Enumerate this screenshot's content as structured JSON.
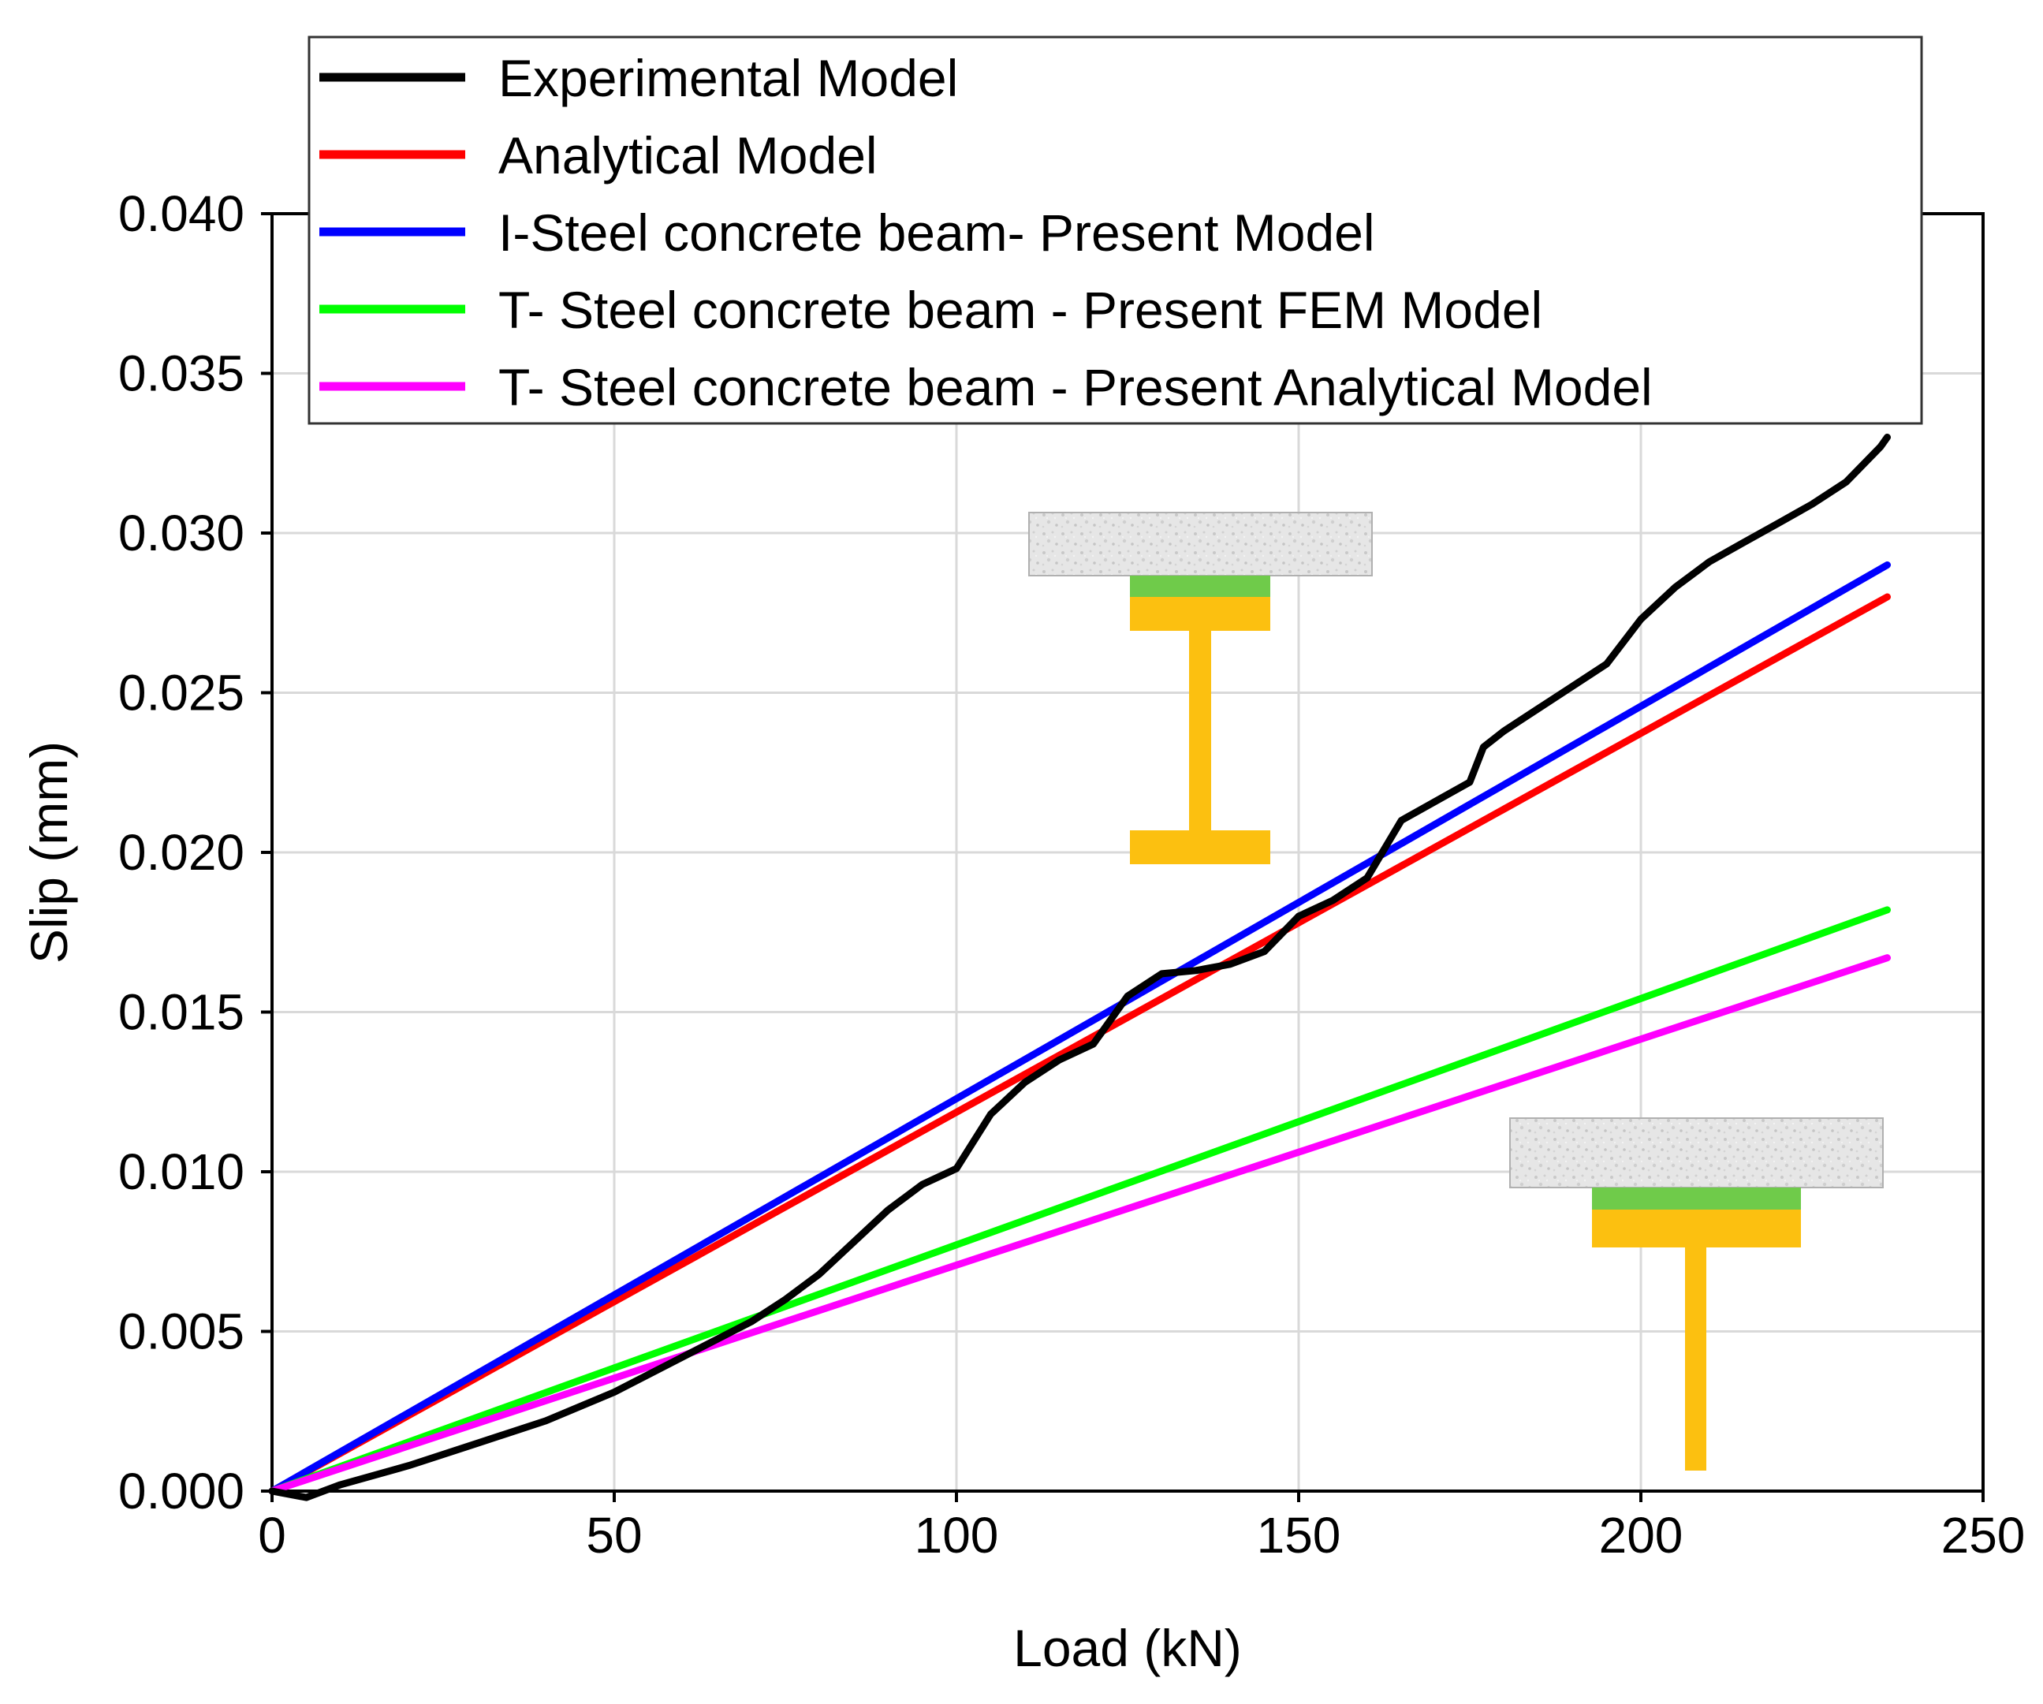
{
  "chart_data": {
    "type": "line",
    "title": "",
    "xlabel": "Load (kN)",
    "ylabel": "Slip (mm)",
    "xlim": [
      0,
      250
    ],
    "ylim": [
      0,
      0.04
    ],
    "xticks": [
      0,
      50,
      100,
      150,
      200,
      250
    ],
    "xtick_labels": [
      "0",
      "50",
      "100",
      "150",
      "200",
      "250"
    ],
    "yticks": [
      0,
      0.005,
      0.01,
      0.015,
      0.02,
      0.025,
      0.03,
      0.035,
      0.04
    ],
    "ytick_labels": [
      "0.000",
      "0.005",
      "0.010",
      "0.015",
      "0.020",
      "0.025",
      "0.030",
      "0.035",
      "0.040"
    ],
    "grid": true,
    "legend_position": "top",
    "series": [
      {
        "name": "Experimental Model",
        "color": "#000000",
        "points": [
          [
            0,
            0
          ],
          [
            5,
            -0.0002
          ],
          [
            10,
            0.0002
          ],
          [
            20,
            0.0008
          ],
          [
            30,
            0.0015
          ],
          [
            40,
            0.0022
          ],
          [
            50,
            0.0031
          ],
          [
            60,
            0.0042
          ],
          [
            70,
            0.0053
          ],
          [
            75,
            0.006
          ],
          [
            80,
            0.0068
          ],
          [
            85,
            0.0078
          ],
          [
            90,
            0.0088
          ],
          [
            95,
            0.0096
          ],
          [
            100,
            0.0101
          ],
          [
            105,
            0.0118
          ],
          [
            110,
            0.0128
          ],
          [
            115,
            0.0135
          ],
          [
            120,
            0.014
          ],
          [
            125,
            0.0155
          ],
          [
            130,
            0.0162
          ],
          [
            135,
            0.0163
          ],
          [
            140,
            0.0165
          ],
          [
            145,
            0.0169
          ],
          [
            150,
            0.018
          ],
          [
            155,
            0.0185
          ],
          [
            160,
            0.0192
          ],
          [
            165,
            0.021
          ],
          [
            170,
            0.0216
          ],
          [
            175,
            0.0222
          ],
          [
            177,
            0.0233
          ],
          [
            180,
            0.0238
          ],
          [
            185,
            0.0245
          ],
          [
            190,
            0.0252
          ],
          [
            195,
            0.0259
          ],
          [
            200,
            0.0273
          ],
          [
            205,
            0.0283
          ],
          [
            210,
            0.0291
          ],
          [
            215,
            0.0297
          ],
          [
            220,
            0.0303
          ],
          [
            225,
            0.0309
          ],
          [
            230,
            0.0316
          ],
          [
            235,
            0.0327
          ],
          [
            236,
            0.033
          ]
        ]
      },
      {
        "name": "Analytical Model",
        "color": "#ff0000",
        "points": [
          [
            0,
            0
          ],
          [
            236,
            0.028
          ]
        ]
      },
      {
        "name": "I-Steel concrete beam- Present Model",
        "color": "#0000ff",
        "points": [
          [
            0,
            0
          ],
          [
            236,
            0.029
          ]
        ]
      },
      {
        "name": "T- Steel concrete beam - Present FEM Model",
        "color": "#00ff00",
        "points": [
          [
            0,
            0
          ],
          [
            236,
            0.0182
          ]
        ]
      },
      {
        "name": "T- Steel concrete beam - Present Analytical Model",
        "color": "#ff00ff",
        "points": [
          [
            0,
            0
          ],
          [
            236,
            0.0167
          ]
        ]
      }
    ]
  },
  "insets": {
    "concrete_color": "#e4e4e4",
    "connector_color": "#6fcb4a",
    "steel_color": "#fcc010"
  }
}
